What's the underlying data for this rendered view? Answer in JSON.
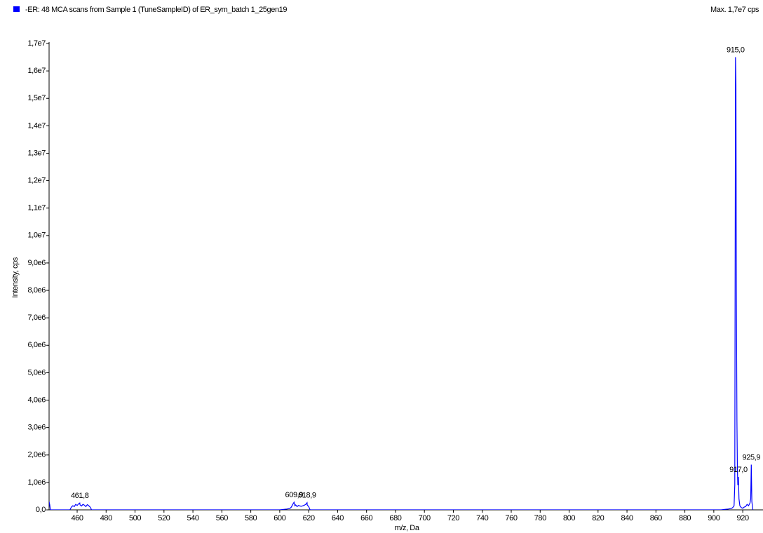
{
  "chart_data": {
    "type": "line",
    "title": "-ER: 48 MCA scans from Sample 1 (TuneSampleID) of ER_sym_batch 1_25gen19",
    "subtitle": "Max. 1,7e7 cps",
    "x_label": "m/z, Da",
    "y_label": "Intensity, cps",
    "xlim": [
      440.6,
      934
    ],
    "ylim": [
      0,
      17000000
    ],
    "xticks": [
      460,
      480,
      500,
      520,
      540,
      560,
      580,
      600,
      620,
      640,
      660,
      680,
      700,
      720,
      740,
      760,
      780,
      800,
      820,
      840,
      860,
      880,
      900,
      920
    ],
    "yticks": [
      {
        "value": 0,
        "label": "0,0"
      },
      {
        "value": 1000000,
        "label": "1,0e6"
      },
      {
        "value": 2000000,
        "label": "2,0e6"
      },
      {
        "value": 3000000,
        "label": "3,0e6"
      },
      {
        "value": 4000000,
        "label": "4,0e6"
      },
      {
        "value": 5000000,
        "label": "5,0e6"
      },
      {
        "value": 6000000,
        "label": "6,0e6"
      },
      {
        "value": 7000000,
        "label": "7,0e6"
      },
      {
        "value": 8000000,
        "label": "8,0e6"
      },
      {
        "value": 9000000,
        "label": "9,0e6"
      },
      {
        "value": 10000000,
        "label": "1,0e7"
      },
      {
        "value": 11000000,
        "label": "1,1e7"
      },
      {
        "value": 12000000,
        "label": "1,2e7"
      },
      {
        "value": 13000000,
        "label": "1,3e7"
      },
      {
        "value": 14000000,
        "label": "1,4e7"
      },
      {
        "value": 15000000,
        "label": "1,5e7"
      },
      {
        "value": 16000000,
        "label": "1,6e7"
      },
      {
        "value": 17000000,
        "label": "1,7e7"
      }
    ],
    "series": [
      {
        "color": "#0000ff",
        "x": [
          440.6,
          441,
          441.5,
          455,
          456,
          457,
          458,
          459,
          460,
          461,
          461.8,
          462,
          463,
          464,
          465,
          466,
          467,
          468,
          469,
          470,
          600,
          605,
          607,
          608,
          609,
          609.9,
          610.5,
          611,
          612,
          613,
          614,
          615,
          616,
          617,
          618,
          618.9,
          619,
          620,
          621,
          905,
          908,
          910,
          912,
          913,
          914,
          914.5,
          915.0,
          915.3,
          915.6,
          916.0,
          916.3,
          916.6,
          917.0,
          917.4,
          918,
          919,
          920,
          921,
          922,
          923,
          924,
          925,
          925.5,
          925.9,
          926.3,
          927
        ],
        "values": [
          300000,
          200000,
          0,
          0,
          100000,
          150000,
          120000,
          200000,
          160000,
          220000,
          250000,
          180000,
          140000,
          200000,
          170000,
          120000,
          190000,
          150000,
          100000,
          0,
          0,
          30000,
          50000,
          100000,
          200000,
          280000,
          150000,
          180000,
          120000,
          160000,
          140000,
          130000,
          150000,
          170000,
          200000,
          260000,
          180000,
          120000,
          0,
          0,
          20000,
          30000,
          50000,
          80000,
          150000,
          900000,
          16500000,
          15500000,
          8000000,
          3200000,
          1500000,
          900000,
          1200000,
          400000,
          150000,
          80000,
          60000,
          100000,
          120000,
          200000,
          150000,
          250000,
          400000,
          1650000,
          300000,
          0
        ]
      }
    ],
    "annotations": [
      {
        "text": "461,8",
        "x": 461.8,
        "y": 250000
      },
      {
        "text": "609,9",
        "x": 609.9,
        "y": 280000
      },
      {
        "text": "618,9",
        "x": 618.9,
        "y": 260000
      },
      {
        "text": "915,0",
        "x": 915.0,
        "y": 16500000
      },
      {
        "text": "917,0",
        "x": 917.0,
        "y": 1200000
      },
      {
        "text": "925,9",
        "x": 925.9,
        "y": 1650000
      }
    ]
  }
}
